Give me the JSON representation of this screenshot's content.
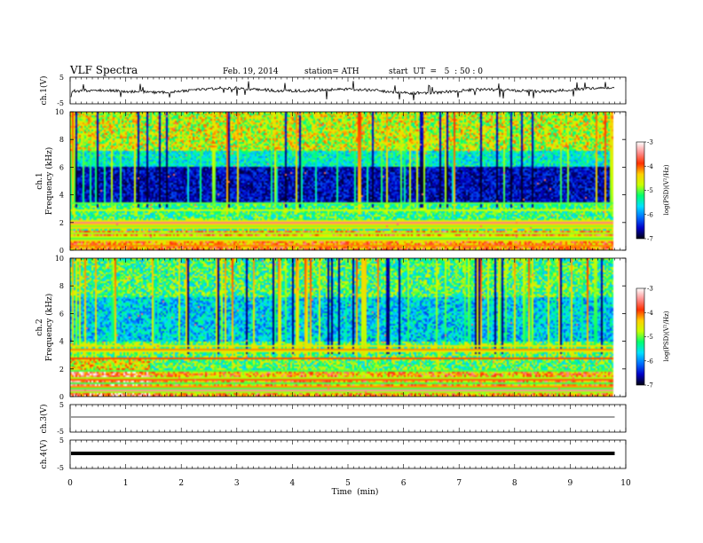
{
  "header": {
    "title": "VLF Spectra",
    "date": "Feb. 19, 2014",
    "station": "station= ATH",
    "start": "start  UT  =   5  : 50 : 0"
  },
  "chart_data": [
    {
      "type": "line",
      "ylabel": "ch.1(V)",
      "ylim": [
        -5,
        5
      ],
      "yticks": [
        "5",
        "-5"
      ],
      "xlim": [
        0,
        10
      ],
      "data_extent_min": 9.8,
      "series_color": "#000000"
    },
    {
      "type": "heatmap",
      "ylabel": [
        "ch.1",
        "Frequency (kHz)"
      ],
      "ylim": [
        0,
        10
      ],
      "yticks": [
        "0",
        "2",
        "4",
        "6",
        "8",
        "10"
      ],
      "xlim": [
        0,
        10
      ],
      "data_extent_min": 9.8,
      "colorbar": {
        "label": "log(PSD)(V²/Hz)",
        "ticks": [
          "-3",
          "-4",
          "-5",
          "-6",
          "-7"
        ],
        "range": [
          -7,
          -3
        ]
      }
    },
    {
      "type": "heatmap",
      "ylabel": [
        "ch.2",
        "Frequency (kHz)"
      ],
      "ylim": [
        0,
        10
      ],
      "yticks": [
        "0",
        "2",
        "4",
        "6",
        "8",
        "10"
      ],
      "xlim": [
        0,
        10
      ],
      "data_extent_min": 9.8,
      "colorbar": {
        "label": "log(PSD)(V²/Hz)",
        "ticks": [
          "-3",
          "-4",
          "-5",
          "-6",
          "-7"
        ],
        "range": [
          -7,
          -3
        ]
      }
    },
    {
      "type": "line",
      "ylabel": "ch.3(V)",
      "ylim": [
        -5,
        5
      ],
      "yticks": [
        "5",
        "-5"
      ],
      "xlim": [
        0,
        10
      ],
      "level": 0
    },
    {
      "type": "line",
      "ylabel": "ch.4(V)",
      "ylim": [
        -5,
        5
      ],
      "yticks": [
        "5",
        "-5"
      ],
      "xlim": [
        0,
        10
      ],
      "level": 0
    }
  ],
  "xaxis": {
    "label": "Time  (min)",
    "ticks": [
      "0",
      "1",
      "2",
      "3",
      "4",
      "5",
      "6",
      "7",
      "8",
      "9",
      "10"
    ]
  },
  "colors": {
    "colormap": [
      "#000010",
      "#0000c8",
      "#0070ff",
      "#00e0ff",
      "#00ff70",
      "#c8ff00",
      "#ffd000",
      "#ff3000",
      "#ff9090",
      "#ffffff"
    ]
  }
}
